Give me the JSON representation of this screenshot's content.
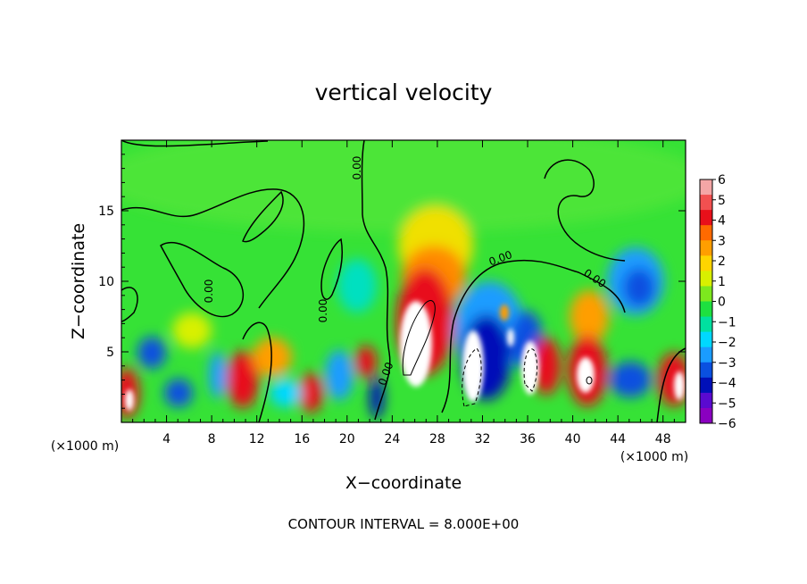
{
  "chart_data": {
    "type": "heatmap",
    "title": "vertical velocity",
    "xlabel": "X−coordinate",
    "ylabel": "Z−coordinate",
    "x_unit_left": "(×1000 m)",
    "x_unit_right": "(×1000 m)",
    "xlim": [
      0,
      50
    ],
    "ylim": [
      0,
      20
    ],
    "x_ticks": [
      "4",
      "8",
      "12",
      "16",
      "20",
      "24",
      "28",
      "32",
      "36",
      "40",
      "44",
      "48"
    ],
    "y_ticks": [
      "5",
      "10",
      "15"
    ],
    "colorbar": {
      "labels": [
        "6",
        "5",
        "4",
        "3",
        "2",
        "1",
        "0",
        "−1",
        "−2",
        "−3",
        "−4",
        "−5",
        "−6"
      ],
      "range": [
        -6,
        6
      ],
      "colors_top_to_bottom": [
        "#f4a6a6",
        "#f25050",
        "#e8101a",
        "#ff6a00",
        "#ff9e00",
        "#ffd400",
        "#d8f000",
        "#7de81e",
        "#1ee040",
        "#00e0a0",
        "#00d8ff",
        "#1a9cff",
        "#0a50e0",
        "#0010b8",
        "#5a0ad0",
        "#8a00c0"
      ]
    },
    "contour_labels": [
      "0.00",
      "0.00",
      "0.00",
      "0.00",
      "0.00",
      "0.00",
      "0.00"
    ],
    "field_features": [
      {
        "x": 27,
        "z": 6.5,
        "w": 7.8
      },
      {
        "x": 28,
        "z": 11,
        "w": 4
      },
      {
        "x": 28,
        "z": 15,
        "w": 1.5
      },
      {
        "x": 32.5,
        "z": 4,
        "w": -6
      },
      {
        "x": 36.5,
        "z": 3.5,
        "w": 6.5
      },
      {
        "x": 41,
        "z": 4,
        "w": 5.5
      },
      {
        "x": 40.5,
        "z": 7,
        "w": 3
      },
      {
        "x": 45.5,
        "z": 10,
        "w": -3
      },
      {
        "x": 45,
        "z": 2.5,
        "w": -3.5
      },
      {
        "x": 49.5,
        "z": 2.5,
        "w": 5
      },
      {
        "x": 0.5,
        "z": 2.3,
        "w": 5.5
      },
      {
        "x": 2.8,
        "z": 5,
        "w": -4.5
      },
      {
        "x": 11,
        "z": 3,
        "w": 5
      },
      {
        "x": 16.5,
        "z": 2,
        "w": 4.5
      },
      {
        "x": 18.7,
        "z": 3,
        "w": -3
      },
      {
        "x": 21.6,
        "z": 4,
        "w": 4.5
      },
      {
        "x": 23,
        "z": 1.5,
        "w": -4
      },
      {
        "x": 21,
        "z": 10.5,
        "w": -2
      },
      {
        "x": 35.5,
        "z": 7.5,
        "w": -3.5
      }
    ],
    "grid": false
  },
  "contour_interval": "CONTOUR INTERVAL =  8.000E+00"
}
